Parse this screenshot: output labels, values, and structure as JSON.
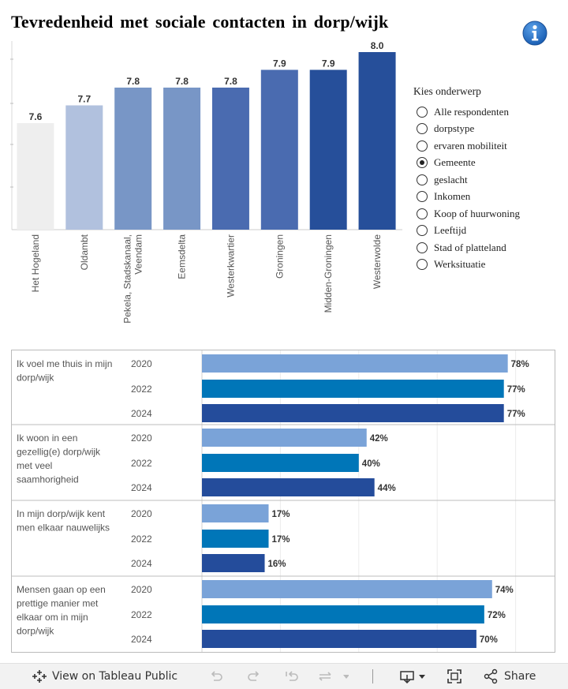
{
  "page": {
    "title": "Tevredenheid met sociale contacten in dorp/wijk",
    "info_icon": "info-icon"
  },
  "legend": {
    "title": "Kies onderwerp",
    "items": [
      {
        "label": "Alle respondenten",
        "selected": false
      },
      {
        "label": "dorpstype",
        "selected": false
      },
      {
        "label": "ervaren mobiliteit",
        "selected": false
      },
      {
        "label": "Gemeente",
        "selected": true
      },
      {
        "label": "geslacht",
        "selected": false
      },
      {
        "label": "Inkomen",
        "selected": false
      },
      {
        "label": "Koop of huurwoning",
        "selected": false
      },
      {
        "label": "Leeftijd",
        "selected": false
      },
      {
        "label": "Stad of platteland",
        "selected": false
      },
      {
        "label": "Werksituatie",
        "selected": false
      }
    ]
  },
  "chart_data": [
    {
      "type": "bar",
      "orientation": "vertical",
      "title": "",
      "xlabel": "",
      "ylabel": "",
      "ylim": [
        7.0,
        8.0
      ],
      "grid": true,
      "categories": [
        "Het Hogeland",
        "Oldambt",
        "Pekela, Stadskanaal, Veendam",
        "Eemsdelta",
        "Westerkwartier",
        "Groningen",
        "Midden-Groningen",
        "Westerwolde"
      ],
      "category_lines": [
        [
          "Het Hogeland"
        ],
        [
          "Oldambt"
        ],
        [
          "Pekela, Stadskanaal,",
          "Veendam"
        ],
        [
          "Eemsdelta"
        ],
        [
          "Westerkwartier"
        ],
        [
          "Groningen"
        ],
        [
          "Midden-Groningen"
        ],
        [
          "Westerwolde"
        ]
      ],
      "values": [
        7.6,
        7.7,
        7.8,
        7.8,
        7.8,
        7.9,
        7.9,
        8.0
      ],
      "value_labels": [
        "7.6",
        "7.7",
        "7.8",
        "7.8",
        "7.8",
        "7.9",
        "7.9",
        "8.0"
      ],
      "colors": [
        "#eeeeee",
        "#b1c1de",
        "#7896c6",
        "#7896c6",
        "#4a6bb0",
        "#4a6bb0",
        "#264f9a",
        "#264f9a"
      ]
    },
    {
      "type": "bar",
      "orientation": "horizontal",
      "title": "",
      "xlim": [
        0,
        100
      ],
      "grid": true,
      "year_colors": {
        "2020": "#7aa3d8",
        "2022": "#0076b8",
        "2024": "#244c9b"
      },
      "groups": [
        {
          "label": "Ik voel me thuis in mijn dorp/wijk",
          "label_lines": [
            "Ik voel me thuis in mijn",
            "dorp/wijk"
          ],
          "bars": [
            {
              "year": "2020",
              "value": 78,
              "label": "78%"
            },
            {
              "year": "2022",
              "value": 77,
              "label": "77%"
            },
            {
              "year": "2024",
              "value": 77,
              "label": "77%"
            }
          ]
        },
        {
          "label": "Ik woon in een gezellig(e) dorp/wijk met veel saamhorigheid",
          "label_lines": [
            "Ik woon in een",
            "gezellig(e) dorp/wijk",
            "met veel",
            "saamhorigheid"
          ],
          "bars": [
            {
              "year": "2020",
              "value": 42,
              "label": "42%"
            },
            {
              "year": "2022",
              "value": 40,
              "label": "40%"
            },
            {
              "year": "2024",
              "value": 44,
              "label": "44%"
            }
          ]
        },
        {
          "label": "In mijn dorp/wijk kent men elkaar nauwelijks",
          "label_lines": [
            "In mijn dorp/wijk kent",
            "men elkaar nauwelijks"
          ],
          "bars": [
            {
              "year": "2020",
              "value": 17,
              "label": "17%"
            },
            {
              "year": "2022",
              "value": 17,
              "label": "17%"
            },
            {
              "year": "2024",
              "value": 16,
              "label": "16%"
            }
          ]
        },
        {
          "label": "Mensen gaan op een prettige manier met elkaar om in mijn dorp/wijk",
          "label_lines": [
            "Mensen gaan op een",
            "prettige manier met",
            "elkaar om in mijn",
            "dorp/wijk"
          ],
          "bars": [
            {
              "year": "2020",
              "value": 74,
              "label": "74%"
            },
            {
              "year": "2022",
              "value": 72,
              "label": "72%"
            },
            {
              "year": "2024",
              "value": 70,
              "label": "70%"
            }
          ]
        }
      ]
    }
  ],
  "toolbar": {
    "view_label": "View on Tableau Public",
    "share_label": "Share"
  }
}
